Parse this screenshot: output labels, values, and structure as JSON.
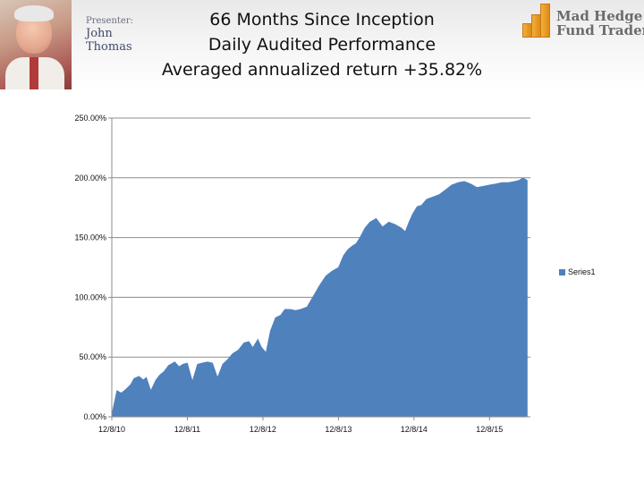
{
  "header": {
    "presenter_label": "Presenter:",
    "presenter_name": "John Thomas",
    "title_lines": [
      "66 Months Since Inception",
      "Daily Audited Performance",
      "Averaged annualized return +35.82%"
    ],
    "logo_lines": [
      "Mad Hedge",
      "Fund Trader"
    ]
  },
  "colors": {
    "series": "#4f81bd",
    "logo_bars": "#e8961a"
  },
  "chart_data": {
    "type": "area",
    "title": "66 Months Since Inception Daily Audited Performance Averaged annualized return +35.82%",
    "xlabel": "",
    "ylabel": "",
    "ylim": [
      0,
      250
    ],
    "y_tick_values": [
      0,
      50,
      100,
      150,
      200,
      250
    ],
    "y_tick_labels": [
      "0.00%",
      "50.00%",
      "100.00%",
      "150.00%",
      "200.00%",
      "250.00%"
    ],
    "x_tick_labels": [
      "12/8/10",
      "12/8/11",
      "12/8/12",
      "12/8/13",
      "12/8/14",
      "12/8/15"
    ],
    "x_tick_positions": [
      0,
      12,
      24,
      36,
      48,
      60
    ],
    "x_range_months": [
      0,
      66.5
    ],
    "grid": true,
    "legend": "right",
    "series": [
      {
        "name": "Series1",
        "x_months": [
          0,
          0.4,
          0.8,
          1.5,
          2.2,
          3,
          3.5,
          4.3,
          5,
          5.5,
          6.2,
          7,
          7.6,
          8.3,
          9,
          10,
          10.7,
          11.3,
          12,
          12.8,
          13.6,
          14.3,
          15.2,
          16,
          16.8,
          17.6,
          18.4,
          19.2,
          20.1,
          21,
          21.8,
          22.4,
          23.2,
          23.8,
          24.5,
          25.2,
          26,
          26.8,
          27.5,
          28.3,
          29.2,
          30,
          31,
          32,
          33,
          34,
          35,
          36,
          36.8,
          37.5,
          38.2,
          38.8,
          39.4,
          40.2,
          41,
          42,
          43,
          44,
          45,
          46,
          46.6,
          47.2,
          47.8,
          48.5,
          49.2,
          50,
          51,
          52,
          53,
          54,
          55,
          56,
          57,
          58,
          59,
          60,
          61,
          62,
          63,
          64,
          64.7,
          65.3,
          66
        ],
        "values": [
          2,
          12,
          22,
          20,
          23,
          27,
          32,
          34,
          31,
          33,
          22,
          31,
          35,
          38,
          43,
          46,
          42,
          44,
          45,
          30,
          44,
          45,
          46,
          45,
          33,
          44,
          48,
          53,
          56,
          62,
          63,
          58,
          65,
          58,
          54,
          72,
          83,
          85,
          90,
          90,
          89,
          90,
          92,
          101,
          110,
          118,
          122,
          125,
          135,
          140,
          143,
          145,
          150,
          158,
          163,
          166,
          159,
          163,
          161,
          158,
          155,
          163,
          170,
          176,
          177,
          182,
          184,
          186,
          190,
          194,
          196,
          197,
          195,
          192,
          193,
          194,
          195,
          196,
          196,
          197,
          198,
          200,
          198
        ]
      }
    ]
  }
}
